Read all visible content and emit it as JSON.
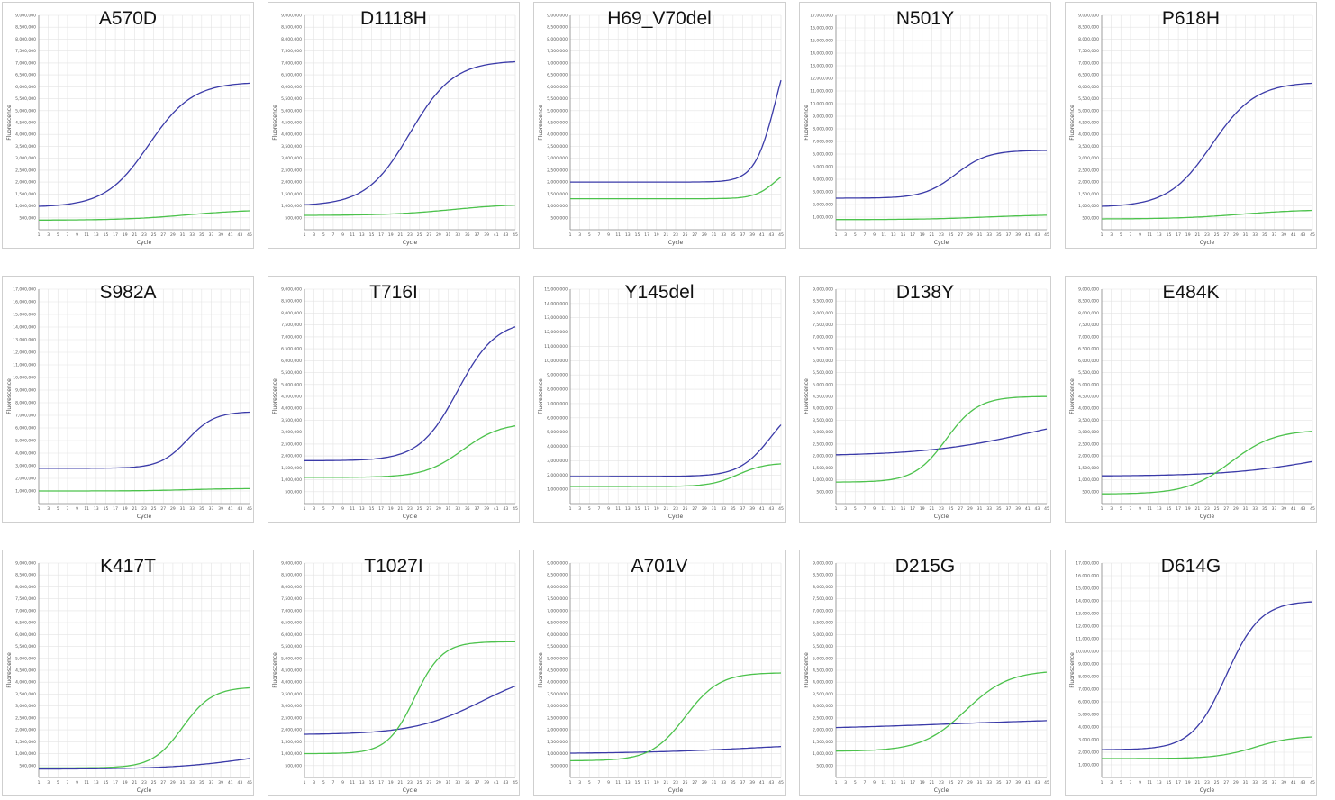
{
  "colors": {
    "target": "#3a3aa8",
    "control": "#4cc24c",
    "grid": "#e3e3e3",
    "axis": "#888888"
  },
  "chart_data": [
    {
      "type": "line",
      "title": "A570D",
      "xlabel": "Cycle",
      "ylabel": "Fluorescence",
      "xlim": [
        1,
        45
      ],
      "ylim": [
        0,
        9000000
      ],
      "yticks": [
        "500,000",
        "1,000,000",
        "1,500,000",
        "2,000,000",
        "2,500,000",
        "3,000,000",
        "3,500,000",
        "4,000,000",
        "4,500,000",
        "5,000,000",
        "5,500,000",
        "6,000,000",
        "6,500,000",
        "7,000,000",
        "7,500,000",
        "8,000,000",
        "8,500,000",
        "9,000,000"
      ],
      "series": [
        {
          "color": "blue",
          "base": 950000,
          "plateau": 6200000,
          "ct": 24,
          "k": 0.22
        },
        {
          "color": "green",
          "base": 400000,
          "plateau": 850000,
          "ct": 32,
          "k": 0.15
        }
      ]
    },
    {
      "type": "line",
      "title": "D1118H",
      "xlabel": "Cycle",
      "ylabel": "Fluorescence",
      "xlim": [
        1,
        45
      ],
      "ylim": [
        0,
        9000000
      ],
      "yticks": [
        "500,000",
        "1,000,000",
        "1,500,000",
        "2,000,000",
        "2,500,000",
        "3,000,000",
        "3,500,000",
        "4,000,000",
        "4,500,000",
        "5,000,000",
        "5,500,000",
        "6,000,000",
        "6,500,000",
        "7,000,000",
        "7,500,000",
        "8,000,000",
        "8,500,000",
        "9,000,000"
      ],
      "series": [
        {
          "color": "blue",
          "base": 1000000,
          "plateau": 7100000,
          "ct": 23,
          "k": 0.22
        },
        {
          "color": "green",
          "base": 600000,
          "plateau": 1100000,
          "ct": 32,
          "k": 0.15
        }
      ]
    },
    {
      "type": "line",
      "title": "H69_V70del",
      "xlabel": "Cycle",
      "ylabel": "Fluorescence",
      "xlim": [
        1,
        45
      ],
      "ylim": [
        0,
        9000000
      ],
      "yticks": [
        "500,000",
        "1,000,000",
        "1,500,000",
        "2,000,000",
        "2,500,000",
        "3,000,000",
        "3,500,000",
        "4,000,000",
        "4,500,000",
        "5,000,000",
        "5,500,000",
        "6,000,000",
        "6,500,000",
        "7,000,000",
        "7,500,000",
        "8,000,000",
        "8,500,000",
        "9,000,000"
      ],
      "series": [
        {
          "color": "blue",
          "base": 2000000,
          "plateau": 9000000,
          "ct": 44,
          "k": 0.45
        },
        {
          "color": "green",
          "base": 1300000,
          "plateau": 2800000,
          "ct": 44,
          "k": 0.45
        }
      ]
    },
    {
      "type": "line",
      "title": "N501Y",
      "xlabel": "Cycle",
      "ylabel": "Fluorescence",
      "xlim": [
        1,
        45
      ],
      "ylim": [
        0,
        17000000
      ],
      "yticks": [
        "1,000,000",
        "2,000,000",
        "3,000,000",
        "4,000,000",
        "5,000,000",
        "6,000,000",
        "7,000,000",
        "8,000,000",
        "9,000,000",
        "10,000,000",
        "11,000,000",
        "12,000,000",
        "13,000,000",
        "14,000,000",
        "15,000,000",
        "16,000,000",
        "17,000,000"
      ],
      "series": [
        {
          "color": "blue",
          "base": 2500000,
          "plateau": 6300000,
          "ct": 26,
          "k": 0.3
        },
        {
          "color": "green",
          "base": 800000,
          "plateau": 1200000,
          "ct": 32,
          "k": 0.15
        }
      ]
    },
    {
      "type": "line",
      "title": "P618H",
      "xlabel": "Cycle",
      "ylabel": "Fluorescence",
      "xlim": [
        1,
        45
      ],
      "ylim": [
        0,
        9000000
      ],
      "yticks": [
        "500,000",
        "1,000,000",
        "1,500,000",
        "2,000,000",
        "2,500,000",
        "3,000,000",
        "3,500,000",
        "4,000,000",
        "4,500,000",
        "5,000,000",
        "5,500,000",
        "6,000,000",
        "6,500,000",
        "7,000,000",
        "7,500,000",
        "8,000,000",
        "8,500,000",
        "9,000,000"
      ],
      "series": [
        {
          "color": "blue",
          "base": 950000,
          "plateau": 6200000,
          "ct": 24,
          "k": 0.22
        },
        {
          "color": "green",
          "base": 450000,
          "plateau": 850000,
          "ct": 30,
          "k": 0.15
        }
      ]
    },
    {
      "type": "line",
      "title": "S982A",
      "xlabel": "Cycle",
      "ylabel": "Fluorescence",
      "xlim": [
        1,
        45
      ],
      "ylim": [
        0,
        17000000
      ],
      "yticks": [
        "1,000,000",
        "2,000,000",
        "3,000,000",
        "4,000,000",
        "5,000,000",
        "6,000,000",
        "7,000,000",
        "8,000,000",
        "9,000,000",
        "10,000,000",
        "11,000,000",
        "12,000,000",
        "13,000,000",
        "14,000,000",
        "15,000,000",
        "16,000,000",
        "17,000,000"
      ],
      "series": [
        {
          "color": "blue",
          "base": 2800000,
          "plateau": 7300000,
          "ct": 32,
          "k": 0.35
        },
        {
          "color": "green",
          "base": 1000000,
          "plateau": 1200000,
          "ct": 32,
          "k": 0.2
        }
      ]
    },
    {
      "type": "line",
      "title": "T716I",
      "xlabel": "Cycle",
      "ylabel": "Fluorescence",
      "xlim": [
        1,
        45
      ],
      "ylim": [
        0,
        9000000
      ],
      "yticks": [
        "500,000",
        "1,000,000",
        "1,500,000",
        "2,000,000",
        "2,500,000",
        "3,000,000",
        "3,500,000",
        "4,000,000",
        "4,500,000",
        "5,000,000",
        "5,500,000",
        "6,000,000",
        "6,500,000",
        "7,000,000",
        "7,500,000",
        "8,000,000",
        "8,500,000",
        "9,000,000"
      ],
      "series": [
        {
          "color": "blue",
          "base": 1800000,
          "plateau": 7700000,
          "ct": 33,
          "k": 0.25
        },
        {
          "color": "green",
          "base": 1100000,
          "plateau": 3400000,
          "ct": 34,
          "k": 0.25
        }
      ]
    },
    {
      "type": "line",
      "title": "Y145del",
      "xlabel": "Cycle",
      "ylabel": "Fluorescence",
      "xlim": [
        1,
        45
      ],
      "ylim": [
        0,
        15000000
      ],
      "yticks": [
        "1,000,000",
        "2,000,000",
        "3,000,000",
        "4,000,000",
        "5,000,000",
        "6,000,000",
        "7,000,000",
        "8,000,000",
        "9,000,000",
        "10,000,000",
        "11,000,000",
        "12,000,000",
        "13,000,000",
        "14,000,000",
        "15,000,000"
      ],
      "series": [
        {
          "color": "blue",
          "base": 1900000,
          "plateau": 7500000,
          "ct": 43,
          "k": 0.3
        },
        {
          "color": "green",
          "base": 1200000,
          "plateau": 2850000,
          "ct": 36,
          "k": 0.35
        }
      ]
    },
    {
      "type": "line",
      "title": "D138Y",
      "xlabel": "Cycle",
      "ylabel": "Fluorescence",
      "xlim": [
        1,
        45
      ],
      "ylim": [
        0,
        9000000
      ],
      "yticks": [
        "500,000",
        "1,000,000",
        "1,500,000",
        "2,000,000",
        "2,500,000",
        "3,000,000",
        "3,500,000",
        "4,000,000",
        "4,500,000",
        "5,000,000",
        "5,500,000",
        "6,000,000",
        "6,500,000",
        "7,000,000",
        "7,500,000",
        "8,000,000",
        "8,500,000",
        "9,000,000"
      ],
      "series": [
        {
          "color": "blue",
          "base": 2000000,
          "plateau": 4000000,
          "ct": 42,
          "k": 0.09
        },
        {
          "color": "green",
          "base": 900000,
          "plateau": 4500000,
          "ct": 24,
          "k": 0.3
        }
      ]
    },
    {
      "type": "line",
      "title": "E484K",
      "xlabel": "Cycle",
      "ylabel": "Fluorescence",
      "xlim": [
        1,
        45
      ],
      "ylim": [
        0,
        9000000
      ],
      "yticks": [
        "500,000",
        "1,000,000",
        "1,500,000",
        "2,000,000",
        "2,500,000",
        "3,000,000",
        "3,500,000",
        "4,000,000",
        "4,500,000",
        "5,000,000",
        "5,500,000",
        "6,000,000",
        "6,500,000",
        "7,000,000",
        "7,500,000",
        "8,000,000",
        "8,500,000",
        "9,000,000"
      ],
      "series": [
        {
          "color": "blue",
          "base": 1150000,
          "plateau": 2600000,
          "ct": 48,
          "k": 0.1
        },
        {
          "color": "green",
          "base": 400000,
          "plateau": 3100000,
          "ct": 28,
          "k": 0.22
        }
      ]
    },
    {
      "type": "line",
      "title": "K417T",
      "xlabel": "Cycle",
      "ylabel": "Fluorescence",
      "xlim": [
        1,
        45
      ],
      "ylim": [
        0,
        9000000
      ],
      "yticks": [
        "500,000",
        "1,000,000",
        "1,500,000",
        "2,000,000",
        "2,500,000",
        "3,000,000",
        "3,500,000",
        "4,000,000",
        "4,500,000",
        "5,000,000",
        "5,500,000",
        "6,000,000",
        "6,500,000",
        "7,000,000",
        "7,500,000",
        "8,000,000",
        "8,500,000",
        "9,000,000"
      ],
      "series": [
        {
          "color": "blue",
          "base": 350000,
          "plateau": 1300000,
          "ct": 46,
          "k": 0.12
        },
        {
          "color": "green",
          "base": 400000,
          "plateau": 3800000,
          "ct": 31,
          "k": 0.32
        }
      ]
    },
    {
      "type": "line",
      "title": "T1027I",
      "xlabel": "Cycle",
      "ylabel": "Fluorescence",
      "xlim": [
        1,
        45
      ],
      "ylim": [
        0,
        9000000
      ],
      "yticks": [
        "500,000",
        "1,000,000",
        "1,500,000",
        "2,000,000",
        "2,500,000",
        "3,000,000",
        "3,500,000",
        "4,000,000",
        "4,500,000",
        "5,000,000",
        "5,500,000",
        "6,000,000",
        "6,500,000",
        "7,000,000",
        "7,500,000",
        "8,000,000",
        "8,500,000",
        "9,000,000"
      ],
      "series": [
        {
          "color": "blue",
          "base": 1800000,
          "plateau": 4600000,
          "ct": 38,
          "k": 0.14
        },
        {
          "color": "green",
          "base": 1000000,
          "plateau": 5700000,
          "ct": 24,
          "k": 0.35
        }
      ]
    },
    {
      "type": "line",
      "title": "A701V",
      "xlabel": "Cycle",
      "ylabel": "Fluorescence",
      "xlim": [
        1,
        45
      ],
      "ylim": [
        0,
        9000000
      ],
      "yticks": [
        "500,000",
        "1,000,000",
        "1,500,000",
        "2,000,000",
        "2,500,000",
        "3,000,000",
        "3,500,000",
        "4,000,000",
        "4,500,000",
        "5,000,000",
        "5,500,000",
        "6,000,000",
        "6,500,000",
        "7,000,000",
        "7,500,000",
        "8,000,000",
        "8,500,000",
        "9,000,000"
      ],
      "series": [
        {
          "color": "blue",
          "base": 1000000,
          "plateau": 1500000,
          "ct": 40,
          "k": 0.08
        },
        {
          "color": "green",
          "base": 700000,
          "plateau": 4400000,
          "ct": 25,
          "k": 0.28
        }
      ]
    },
    {
      "type": "line",
      "title": "D215G",
      "xlabel": "Cycle",
      "ylabel": "Fluorescence",
      "xlim": [
        1,
        45
      ],
      "ylim": [
        0,
        9000000
      ],
      "yticks": [
        "500,000",
        "1,000,000",
        "1,500,000",
        "2,000,000",
        "2,500,000",
        "3,000,000",
        "3,500,000",
        "4,000,000",
        "4,500,000",
        "5,000,000",
        "5,500,000",
        "6,000,000",
        "6,500,000",
        "7,000,000",
        "7,500,000",
        "8,000,000",
        "8,500,000",
        "9,000,000"
      ],
      "series": [
        {
          "color": "blue",
          "base": 2000000,
          "plateau": 2500000,
          "ct": 25,
          "k": 0.06
        },
        {
          "color": "green",
          "base": 1100000,
          "plateau": 4500000,
          "ct": 28,
          "k": 0.22
        }
      ]
    },
    {
      "type": "line",
      "title": "D614G",
      "xlabel": "Cycle",
      "ylabel": "Fluorescence",
      "xlim": [
        1,
        45
      ],
      "ylim": [
        0,
        17000000
      ],
      "yticks": [
        "1,000,000",
        "2,000,000",
        "3,000,000",
        "4,000,000",
        "5,000,000",
        "6,000,000",
        "7,000,000",
        "8,000,000",
        "9,000,000",
        "10,000,000",
        "11,000,000",
        "12,000,000",
        "13,000,000",
        "14,000,000",
        "15,000,000",
        "16,000,000",
        "17,000,000"
      ],
      "series": [
        {
          "color": "blue",
          "base": 2200000,
          "plateau": 14000000,
          "ct": 27,
          "k": 0.28
        },
        {
          "color": "green",
          "base": 1500000,
          "plateau": 3300000,
          "ct": 33,
          "k": 0.25
        }
      ]
    }
  ]
}
